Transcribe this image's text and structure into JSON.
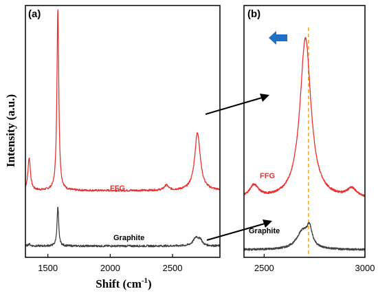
{
  "chart_data": [
    {
      "type": "line",
      "panel_label": "(a)",
      "xlabel": "Shift (cm",
      "xlabel_sup": "-1",
      "xlabel_end": ")",
      "ylabel": "Intensity (a.u.)",
      "xlim": [
        1320,
        2880
      ],
      "ylim": [
        0,
        1
      ],
      "xticks": [
        1500,
        2000,
        2500
      ],
      "xtick_labels": [
        "1500",
        "2000",
        "2500"
      ],
      "yticks": [],
      "grid": false,
      "series": [
        {
          "name": "FFG",
          "color": "#e8302e",
          "baseline": 0.265,
          "peaks": [
            {
              "center": 1350,
              "width": 12,
              "height": 0.13
            },
            {
              "center": 1580,
              "width": 9,
              "height": 0.72
            },
            {
              "center": 2450,
              "width": 20,
              "height": 0.02
            },
            {
              "center": 2700,
              "width": 27,
              "height": 0.23
            }
          ]
        },
        {
          "name": "Graphite",
          "color": "#404040",
          "baseline": 0.045,
          "peaks": [
            {
              "center": 1350,
              "width": 10,
              "height": 0.008
            },
            {
              "center": 1580,
              "width": 8,
              "height": 0.155
            },
            {
              "center": 2690,
              "width": 28,
              "height": 0.035
            },
            {
              "center": 2725,
              "width": 14,
              "height": 0.018
            }
          ]
        }
      ]
    },
    {
      "type": "line",
      "panel_label": "(b)",
      "xlim": [
        2400,
        3000
      ],
      "ylim": [
        0,
        1
      ],
      "xticks": [
        2500,
        3000
      ],
      "xtick_labels": [
        "2500",
        "3000"
      ],
      "yticks": [],
      "grid": false,
      "reference_line": {
        "x": 2720,
        "color": "#f5a623",
        "style": "dashed"
      },
      "arrow": {
        "direction": "left",
        "color": "#1f6fc9"
      },
      "series": [
        {
          "name": "FFG",
          "color": "#e8302e",
          "baseline": 0.23,
          "peaks": [
            {
              "center": 2450,
              "width": 28,
              "height": 0.05
            },
            {
              "center": 2705,
              "width": 33,
              "height": 0.64
            },
            {
              "center": 2935,
              "width": 30,
              "height": 0.035
            }
          ]
        },
        {
          "name": "Graphite",
          "color": "#404040",
          "baseline": 0.03,
          "peaks": [
            {
              "center": 2690,
              "width": 36,
              "height": 0.07
            },
            {
              "center": 2725,
              "width": 16,
              "height": 0.07
            }
          ]
        }
      ]
    }
  ]
}
